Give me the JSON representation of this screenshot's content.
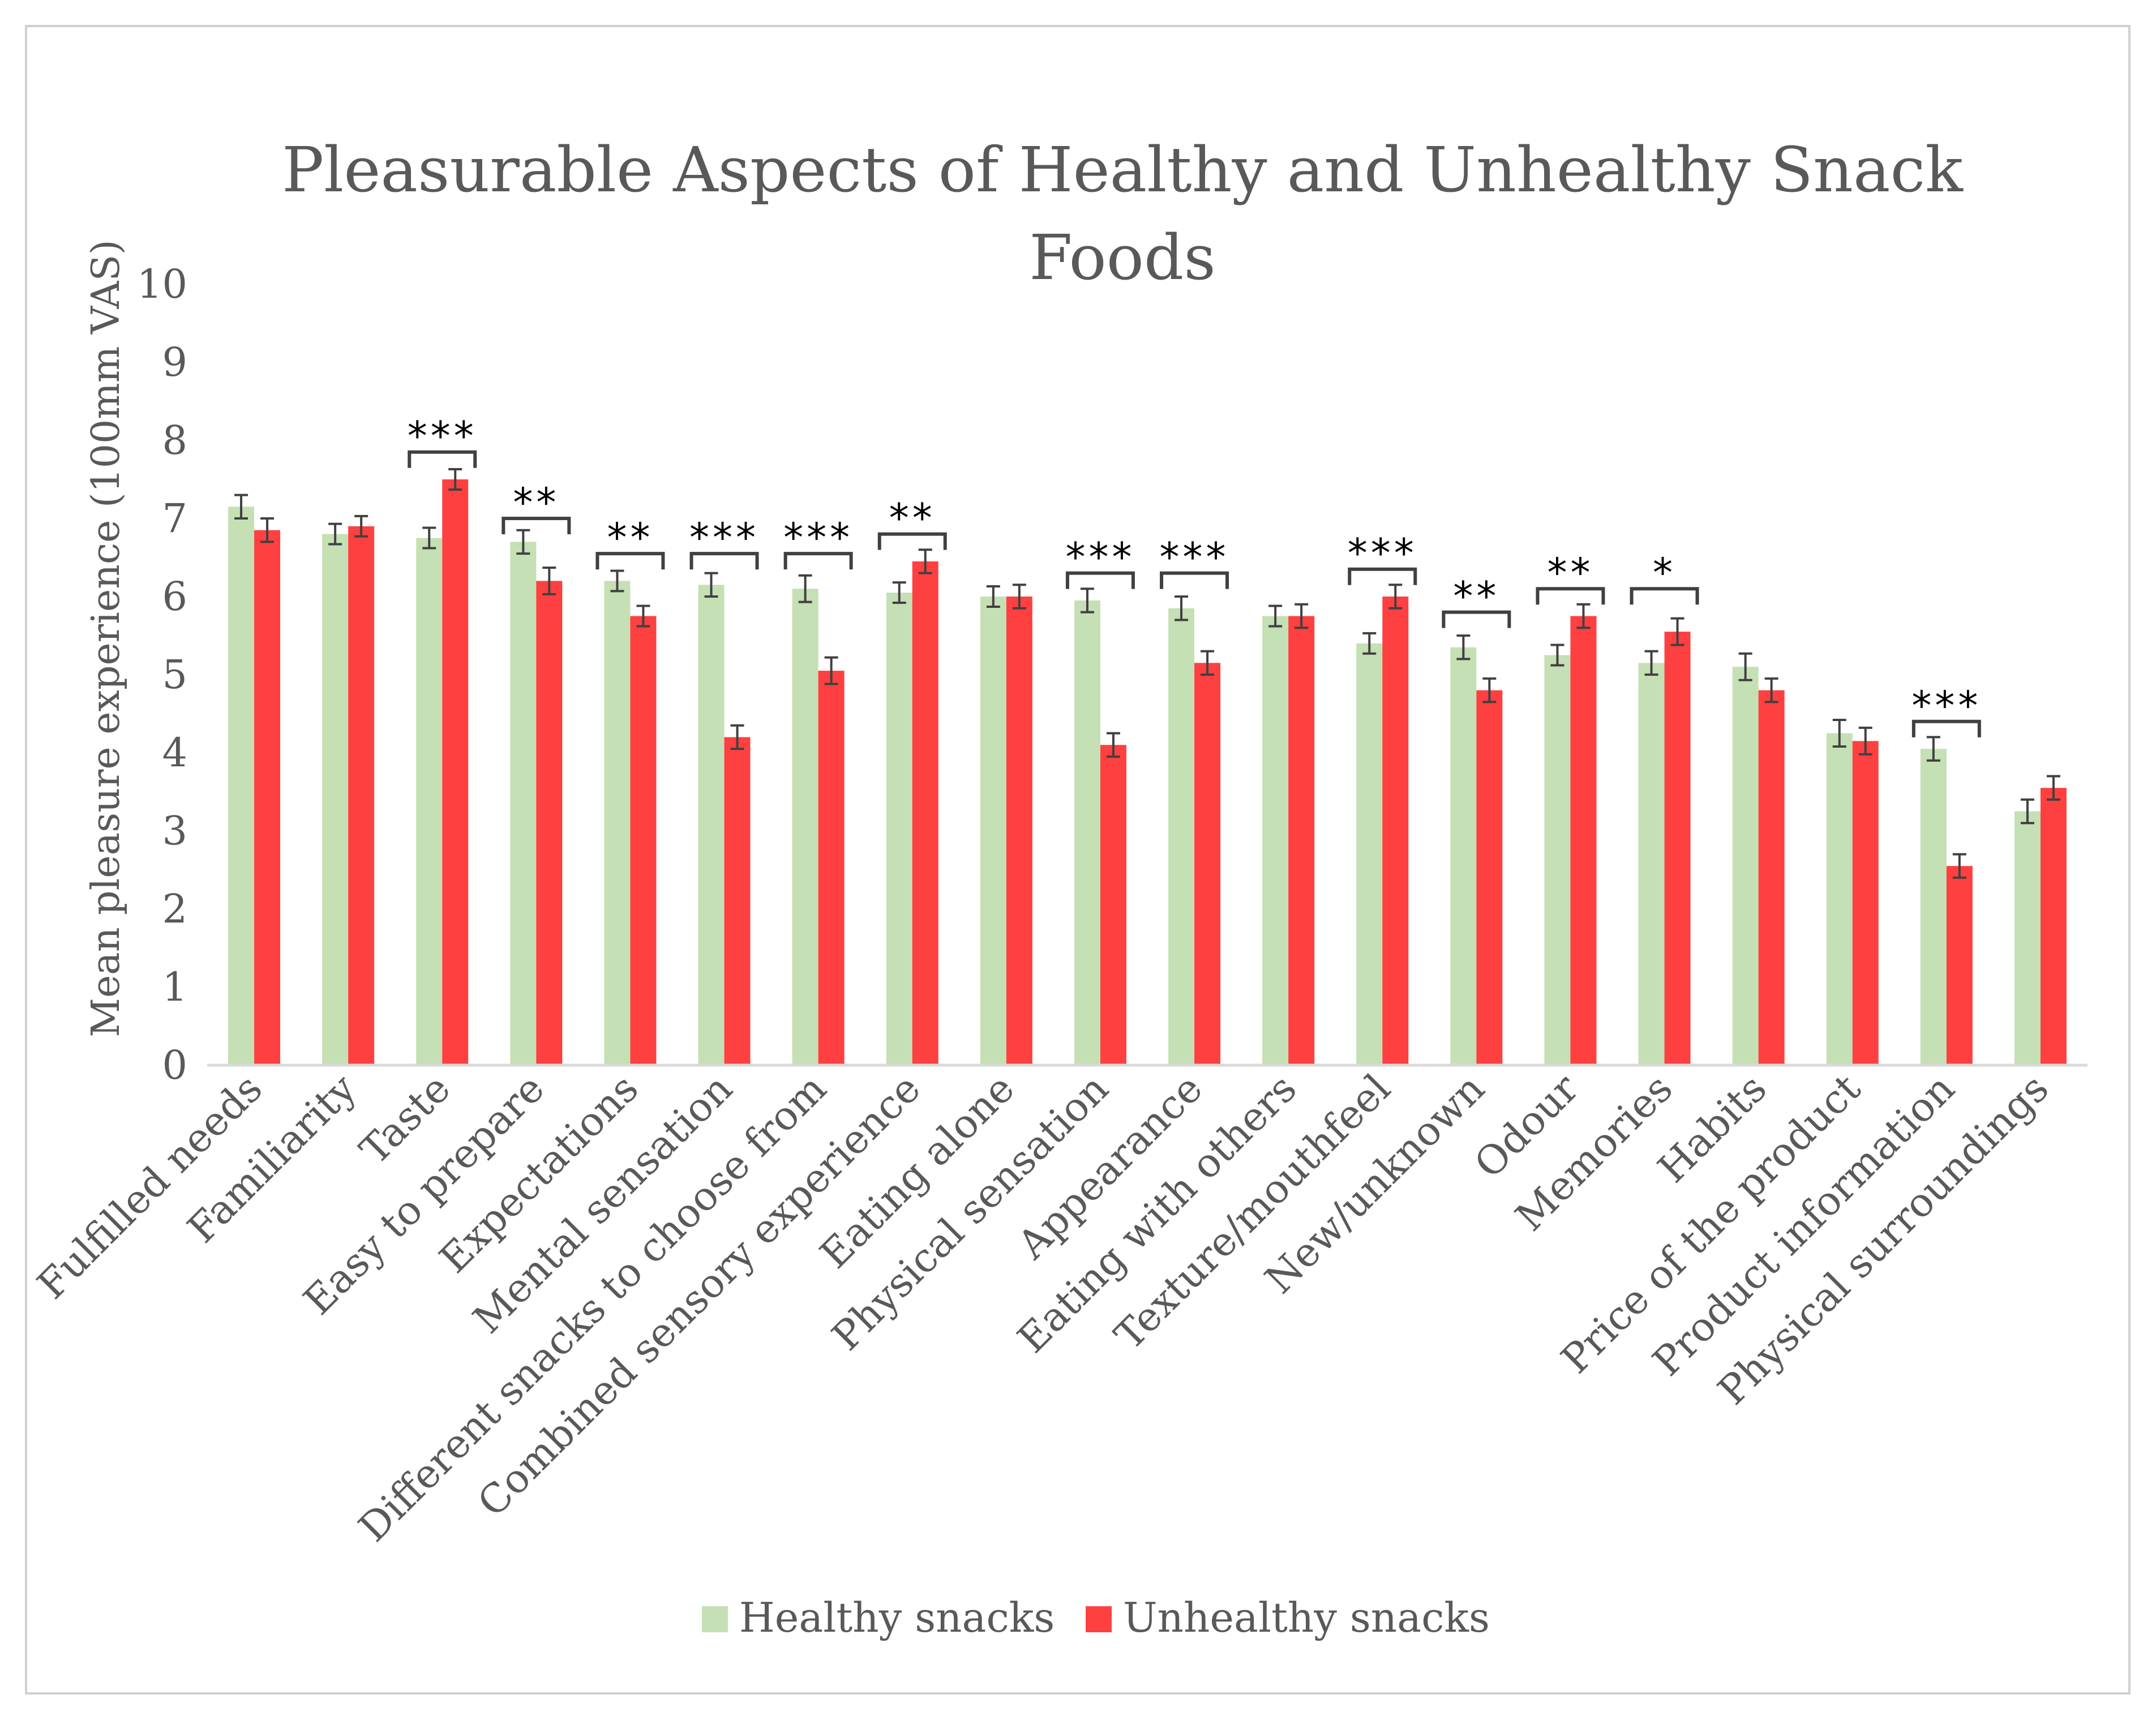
{
  "chart_data": {
    "type": "bar",
    "title_lines": [
      "Pleasurable Aspects of Healthy and Unhealthy Snack",
      "Foods"
    ],
    "ylabel": "Mean pleasure experience (100mm VAS)",
    "xlabel": "",
    "ylim": [
      0,
      10
    ],
    "yticks": [
      "0",
      "1",
      "2",
      "3",
      "4",
      "5",
      "6",
      "7",
      "8",
      "9",
      "10"
    ],
    "grid": false,
    "legend_position": "bottom",
    "categories": [
      "Fulfilled needs",
      "Familiarity",
      "Taste",
      "Easy to prepare",
      "Expectations",
      "Mental sensation",
      "Different snacks to choose from",
      "Combined sensory experience",
      "Eating alone",
      "Physical sensation",
      "Appearance",
      "Eating with others",
      "Texture/mouthfeel",
      "New/unknown",
      "Odour",
      "Memories",
      "Habits",
      "Price of the product",
      "Product information",
      "Physical surroundings"
    ],
    "series": [
      {
        "name": "Healthy snacks",
        "color": "#c5e0b4",
        "values": [
          7.15,
          6.8,
          6.75,
          6.7,
          6.2,
          6.15,
          6.1,
          6.05,
          6.0,
          5.95,
          5.85,
          5.75,
          5.4,
          5.35,
          5.25,
          5.15,
          5.1,
          4.25,
          4.05,
          3.25
        ],
        "errors": [
          0.15,
          0.13,
          0.13,
          0.15,
          0.13,
          0.15,
          0.17,
          0.13,
          0.13,
          0.15,
          0.15,
          0.13,
          0.13,
          0.15,
          0.13,
          0.15,
          0.17,
          0.17,
          0.15,
          0.15
        ]
      },
      {
        "name": "Unhealthy snacks",
        "color": "#ff4040",
        "values": [
          6.85,
          6.9,
          7.5,
          6.2,
          5.75,
          4.2,
          5.05,
          6.45,
          6.0,
          4.1,
          5.15,
          5.75,
          6.0,
          4.8,
          5.75,
          5.55,
          4.8,
          4.15,
          2.55,
          3.55
        ],
        "errors": [
          0.15,
          0.13,
          0.13,
          0.17,
          0.13,
          0.15,
          0.17,
          0.15,
          0.15,
          0.15,
          0.15,
          0.15,
          0.15,
          0.15,
          0.15,
          0.17,
          0.15,
          0.17,
          0.15,
          0.15
        ]
      }
    ],
    "significance": [
      {
        "category_index": 2,
        "label": "***",
        "top": 7.85
      },
      {
        "category_index": 3,
        "label": "**",
        "top": 7.0
      },
      {
        "category_index": 4,
        "label": "**",
        "top": 6.55
      },
      {
        "category_index": 5,
        "label": "***",
        "top": 6.55
      },
      {
        "category_index": 6,
        "label": "***",
        "top": 6.55
      },
      {
        "category_index": 7,
        "label": "**",
        "top": 6.8
      },
      {
        "category_index": 9,
        "label": "***",
        "top": 6.3
      },
      {
        "category_index": 10,
        "label": "***",
        "top": 6.3
      },
      {
        "category_index": 12,
        "label": "***",
        "top": 6.35
      },
      {
        "category_index": 13,
        "label": "**",
        "top": 5.8
      },
      {
        "category_index": 14,
        "label": "**",
        "top": 6.1
      },
      {
        "category_index": 15,
        "label": "*",
        "top": 6.1
      },
      {
        "category_index": 18,
        "label": "***",
        "top": 4.4
      }
    ]
  }
}
